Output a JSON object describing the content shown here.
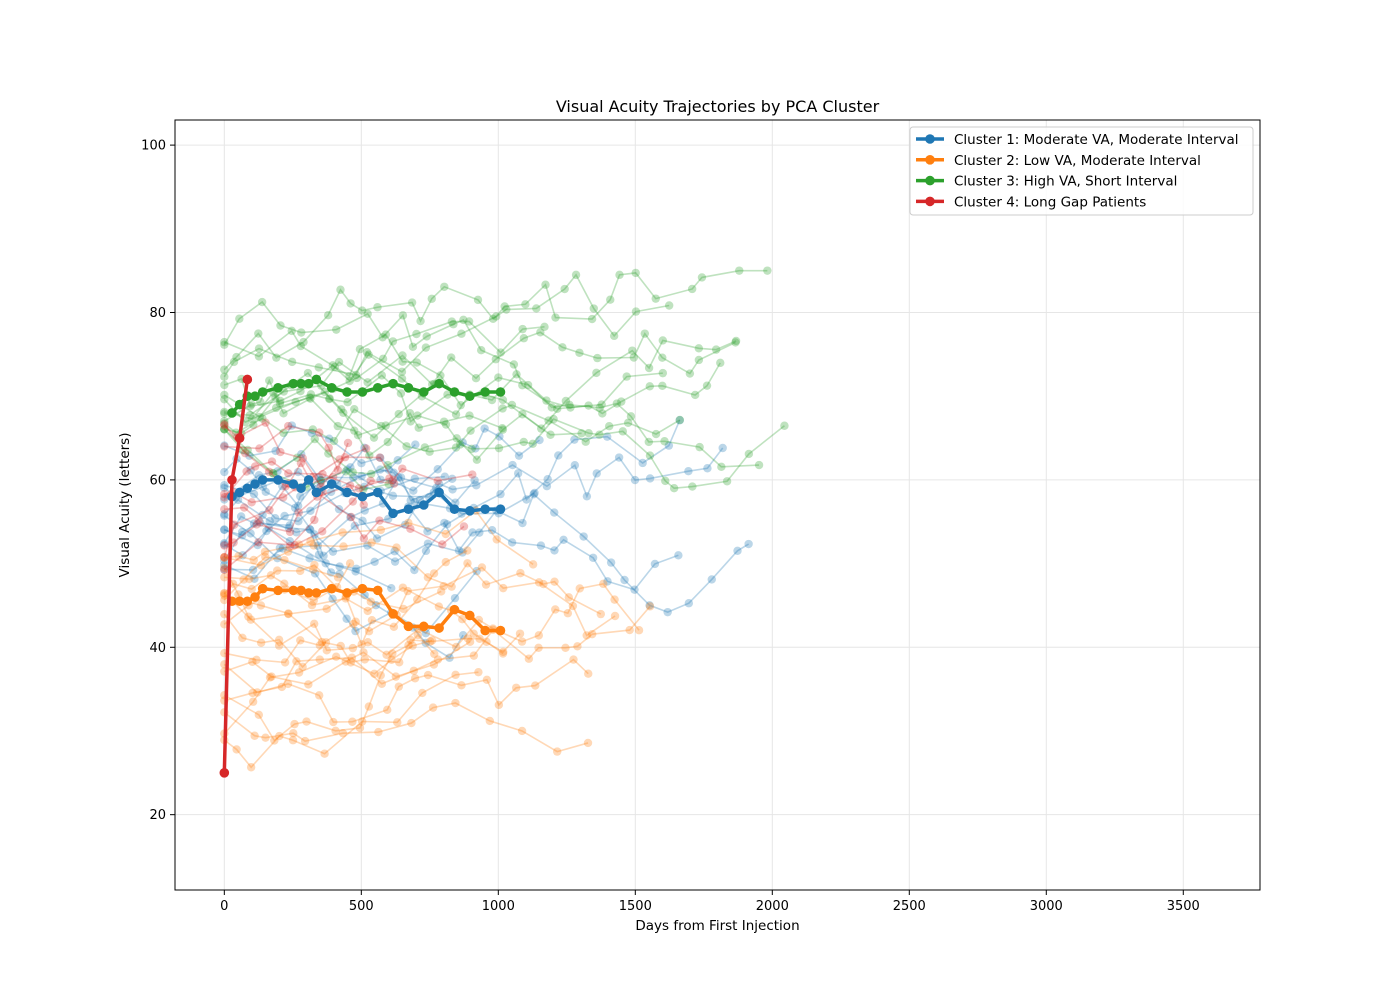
{
  "chart_data": {
    "type": "line",
    "title": "Visual Acuity Trajectories by PCA Cluster",
    "xlabel": "Days from First Injection",
    "ylabel": "Visual Acuity (letters)",
    "xlim": [
      -180,
      3780
    ],
    "ylim": [
      11,
      103
    ],
    "xticks": [
      0,
      500,
      1000,
      1500,
      2000,
      2500,
      3000,
      3500
    ],
    "yticks": [
      20,
      40,
      60,
      80,
      100
    ],
    "grid": true,
    "legend_position": "top-right",
    "series": [
      {
        "name": "Cluster 1: Moderate VA, Moderate Interval",
        "color": "#1f77b4",
        "x": [
          28,
          56,
          84,
          112,
          140,
          196,
          252,
          280,
          308,
          336,
          392,
          448,
          504,
          560,
          616,
          672,
          728,
          784,
          840,
          896,
          952,
          1008
        ],
        "y": [
          58,
          58.5,
          59,
          59.5,
          60,
          60,
          59.5,
          59,
          60,
          58.5,
          59.5,
          58.5,
          58,
          58.5,
          56,
          56.5,
          57,
          58.5,
          56.5,
          56.3,
          56.5,
          56.5
        ]
      },
      {
        "name": "Cluster 2: Low VA, Moderate Interval",
        "color": "#ff7f0e",
        "x": [
          28,
          56,
          84,
          112,
          140,
          196,
          252,
          280,
          308,
          336,
          392,
          448,
          504,
          560,
          616,
          672,
          728,
          784,
          840,
          896,
          952,
          1008
        ],
        "y": [
          45.5,
          45.5,
          45.5,
          46,
          47,
          46.8,
          46.8,
          46.8,
          46.5,
          46.5,
          47,
          46.5,
          47,
          46.8,
          44,
          42.5,
          42.5,
          42.3,
          44.5,
          43.8,
          42,
          42
        ]
      },
      {
        "name": "Cluster 3: High VA, Short Interval",
        "color": "#2ca02c",
        "x": [
          28,
          56,
          84,
          112,
          140,
          196,
          252,
          280,
          308,
          336,
          392,
          448,
          504,
          560,
          616,
          672,
          728,
          784,
          840,
          896,
          952,
          1008
        ],
        "y": [
          68,
          69,
          70,
          70,
          70.5,
          71,
          71.5,
          71.5,
          71.5,
          72,
          71,
          70.5,
          70.5,
          71,
          71.5,
          71,
          70.5,
          71.5,
          70.5,
          70,
          70.5,
          70.5
        ]
      },
      {
        "name": "Cluster 4: Long Gap Patients",
        "color": "#d62728",
        "x": [
          0,
          28,
          56,
          84
        ],
        "y": [
          25,
          60,
          65,
          72
        ]
      }
    ]
  }
}
